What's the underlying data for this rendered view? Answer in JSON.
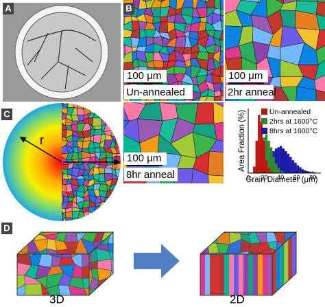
{
  "panels": {
    "a": {
      "label": "A"
    },
    "b": {
      "label": "B",
      "images": [
        {
          "scale_bar": "100 μm",
          "caption": "Un-annealed"
        },
        {
          "scale_bar": "100 μm",
          "caption": "2hr anneal"
        },
        {
          "scale_bar": "100 μm",
          "caption": "8hr anneal"
        }
      ]
    },
    "c": {
      "label": "C",
      "radius_label": "r"
    },
    "d": {
      "label": "D",
      "left_caption": "3D",
      "right_caption": "2D"
    }
  },
  "chart_data": {
    "type": "histogram",
    "xlabel": "Grain Diameter (μm)",
    "ylabel": "Area Fraction (%)",
    "bins": [
      6,
      9,
      12,
      15,
      18,
      21,
      24,
      27,
      30,
      33,
      36,
      39,
      42,
      45,
      48,
      51,
      54,
      57,
      60,
      63,
      66,
      69,
      72,
      75,
      78,
      81,
      84,
      87
    ],
    "xlim": [
      0,
      90
    ],
    "xticks": [
      0,
      20,
      40,
      60,
      80
    ],
    "ylim": [
      0,
      10
    ],
    "series": [
      {
        "name": "Un-annealed",
        "color": "#c0150f",
        "values": [
          1,
          5,
          9,
          8,
          5,
          2,
          0.8,
          0.3,
          0.1,
          0,
          0,
          0,
          0,
          0,
          0,
          0,
          0,
          0,
          0,
          0,
          0,
          0,
          0,
          0,
          0,
          0,
          0
        ]
      },
      {
        "name": "2hrs at 1600°C",
        "color": "#2e8b2e",
        "values": [
          0,
          0.5,
          2,
          4,
          5.5,
          6,
          5,
          4,
          2.5,
          1.5,
          0.8,
          0.4,
          0.2,
          0,
          0,
          0,
          0,
          0,
          0,
          0,
          0,
          0,
          0,
          0,
          0,
          0,
          0
        ]
      },
      {
        "name": "8hrs at 1600°C",
        "color": "#1a1aa8",
        "values": [
          0,
          0,
          0,
          0.2,
          0.6,
          1.2,
          2,
          2.8,
          3.4,
          3.8,
          4,
          4.2,
          3.8,
          3.4,
          3,
          2.5,
          2,
          1.6,
          1.2,
          0.9,
          0.6,
          0.4,
          0.3,
          0.2,
          0.1,
          0.1,
          0
        ]
      }
    ],
    "legend": "upper-right"
  }
}
